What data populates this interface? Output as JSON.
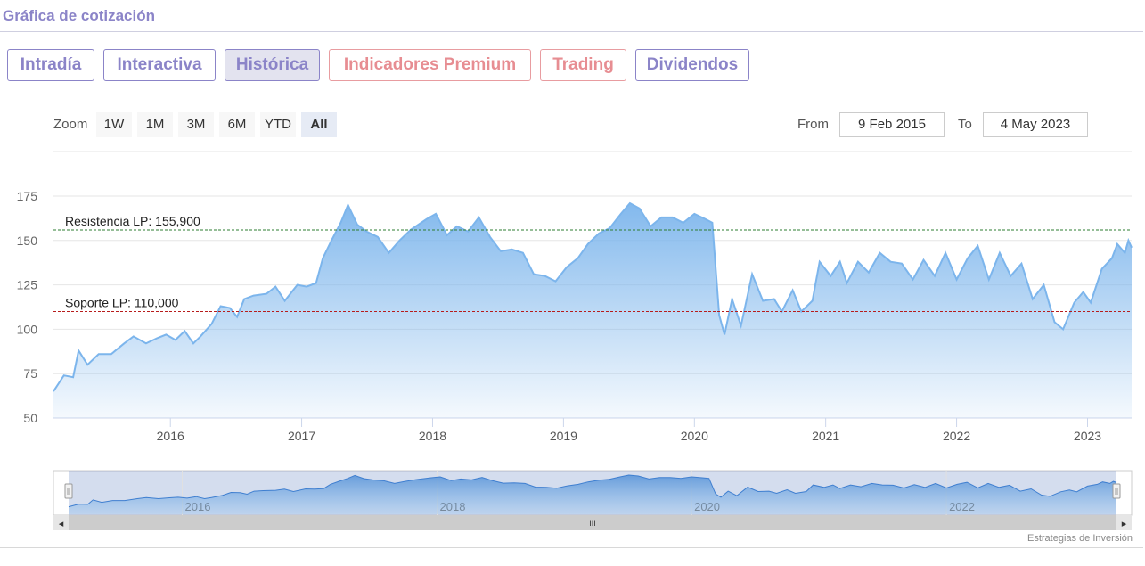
{
  "header": {
    "title": "Gráfica de cotización"
  },
  "tabs": [
    {
      "label": "Intradía",
      "style": "purple",
      "active": false
    },
    {
      "label": "Interactiva",
      "style": "purple",
      "active": false
    },
    {
      "label": "Histórica",
      "style": "purple",
      "active": true
    },
    {
      "label": "Indicadores Premium",
      "style": "red",
      "active": false
    },
    {
      "label": "Trading",
      "style": "red",
      "active": false
    },
    {
      "label": "Dividendos",
      "style": "purple",
      "active": false
    }
  ],
  "range_selector": {
    "zoom_label": "Zoom",
    "buttons": [
      "1W",
      "1M",
      "3M",
      "6M",
      "YTD",
      "All"
    ],
    "selected": "All",
    "from_label": "From",
    "from_value": "9 Feb 2015",
    "to_label": "To",
    "to_value": "4 May 2023"
  },
  "navigator": {
    "scrollbar_grip": "III",
    "left_arrow": "◂",
    "right_arrow": "▸"
  },
  "credit": "Estrategias de Inversión",
  "colors": {
    "accent": "#8b84c8",
    "premium": "#e78d92",
    "series_line": "#7cb5ec",
    "resistance": "#2e7d32",
    "support": "#b71c1c"
  },
  "chart_data": {
    "type": "area",
    "title": "",
    "xlabel": "",
    "ylabel": "",
    "ylim": [
      50,
      175
    ],
    "y_ticks": [
      "50",
      "75",
      "100",
      "125",
      "150",
      "175"
    ],
    "x_ticks": [
      "2016",
      "2017",
      "2018",
      "2019",
      "2020",
      "2021",
      "2022",
      "2023"
    ],
    "xlim": [
      "2015-02-09",
      "2023-05-04"
    ],
    "grid": true,
    "series": [
      {
        "name": "",
        "points": [
          [
            "2015-02-09",
            65
          ],
          [
            "2015-03-10",
            74
          ],
          [
            "2015-04-05",
            73
          ],
          [
            "2015-04-20",
            88
          ],
          [
            "2015-05-15",
            80
          ],
          [
            "2015-06-15",
            86
          ],
          [
            "2015-07-20",
            86
          ],
          [
            "2015-08-25",
            92
          ],
          [
            "2015-09-20",
            96
          ],
          [
            "2015-10-25",
            92
          ],
          [
            "2015-11-25",
            95
          ],
          [
            "2015-12-20",
            97
          ],
          [
            "2016-01-15",
            94
          ],
          [
            "2016-02-10",
            99
          ],
          [
            "2016-03-05",
            92
          ],
          [
            "2016-03-25",
            96
          ],
          [
            "2016-04-25",
            103
          ],
          [
            "2016-05-20",
            113
          ],
          [
            "2016-06-15",
            112
          ],
          [
            "2016-07-05",
            107
          ],
          [
            "2016-07-25",
            117
          ],
          [
            "2016-08-20",
            119
          ],
          [
            "2016-09-25",
            120
          ],
          [
            "2016-10-20",
            124
          ],
          [
            "2016-11-15",
            116
          ],
          [
            "2016-12-20",
            125
          ],
          [
            "2017-01-15",
            124
          ],
          [
            "2017-02-10",
            126
          ],
          [
            "2017-03-01",
            140
          ],
          [
            "2017-03-25",
            150
          ],
          [
            "2017-04-20",
            160
          ],
          [
            "2017-05-10",
            170
          ],
          [
            "2017-06-05",
            159
          ],
          [
            "2017-07-01",
            155
          ],
          [
            "2017-08-01",
            152
          ],
          [
            "2017-09-01",
            143
          ],
          [
            "2017-10-01",
            150
          ],
          [
            "2017-11-01",
            156
          ],
          [
            "2017-12-15",
            162
          ],
          [
            "2018-01-10",
            165
          ],
          [
            "2018-02-10",
            153
          ],
          [
            "2018-03-10",
            158
          ],
          [
            "2018-04-10",
            155
          ],
          [
            "2018-05-10",
            163
          ],
          [
            "2018-06-10",
            152
          ],
          [
            "2018-07-10",
            144
          ],
          [
            "2018-08-10",
            145
          ],
          [
            "2018-09-10",
            143
          ],
          [
            "2018-10-10",
            131
          ],
          [
            "2018-11-10",
            130
          ],
          [
            "2018-12-10",
            127
          ],
          [
            "2019-01-10",
            135
          ],
          [
            "2019-02-10",
            140
          ],
          [
            "2019-03-10",
            148
          ],
          [
            "2019-04-10",
            154
          ],
          [
            "2019-05-10",
            157
          ],
          [
            "2019-06-10",
            165
          ],
          [
            "2019-07-05",
            171
          ],
          [
            "2019-08-01",
            168
          ],
          [
            "2019-09-01",
            158
          ],
          [
            "2019-10-01",
            163
          ],
          [
            "2019-11-01",
            163
          ],
          [
            "2019-12-01",
            160
          ],
          [
            "2020-01-01",
            165
          ],
          [
            "2020-02-01",
            162
          ],
          [
            "2020-02-20",
            160
          ],
          [
            "2020-03-10",
            108
          ],
          [
            "2020-03-25",
            97
          ],
          [
            "2020-04-15",
            117
          ],
          [
            "2020-05-10",
            102
          ],
          [
            "2020-06-10",
            131
          ],
          [
            "2020-07-10",
            116
          ],
          [
            "2020-08-10",
            117
          ],
          [
            "2020-09-01",
            110
          ],
          [
            "2020-10-01",
            122
          ],
          [
            "2020-10-25",
            110
          ],
          [
            "2020-11-25",
            116
          ],
          [
            "2020-12-15",
            138
          ],
          [
            "2021-01-15",
            130
          ],
          [
            "2021-02-10",
            138
          ],
          [
            "2021-03-01",
            126
          ],
          [
            "2021-04-01",
            138
          ],
          [
            "2021-05-01",
            132
          ],
          [
            "2021-06-01",
            143
          ],
          [
            "2021-07-01",
            138
          ],
          [
            "2021-08-01",
            137
          ],
          [
            "2021-09-01",
            128
          ],
          [
            "2021-10-01",
            139
          ],
          [
            "2021-11-01",
            130
          ],
          [
            "2021-12-01",
            143
          ],
          [
            "2022-01-01",
            128
          ],
          [
            "2022-02-01",
            140
          ],
          [
            "2022-03-01",
            147
          ],
          [
            "2022-04-01",
            128
          ],
          [
            "2022-05-01",
            143
          ],
          [
            "2022-06-01",
            130
          ],
          [
            "2022-07-01",
            137
          ],
          [
            "2022-08-01",
            117
          ],
          [
            "2022-09-01",
            125
          ],
          [
            "2022-10-01",
            104
          ],
          [
            "2022-10-25",
            100
          ],
          [
            "2022-11-25",
            115
          ],
          [
            "2022-12-20",
            121
          ],
          [
            "2023-01-10",
            115
          ],
          [
            "2023-02-10",
            134
          ],
          [
            "2023-03-10",
            140
          ],
          [
            "2023-03-25",
            148
          ],
          [
            "2023-04-15",
            143
          ],
          [
            "2023-04-25",
            150
          ],
          [
            "2023-05-04",
            146
          ]
        ]
      }
    ],
    "plot_lines": [
      {
        "label": "Resistencia LP: 155,900",
        "value": 155.9,
        "color": "resistance"
      },
      {
        "label": "Soporte LP: 110,000",
        "value": 110.0,
        "color": "support"
      }
    ],
    "navigator_x_ticks": [
      "2016",
      "2018",
      "2020",
      "2022"
    ]
  }
}
